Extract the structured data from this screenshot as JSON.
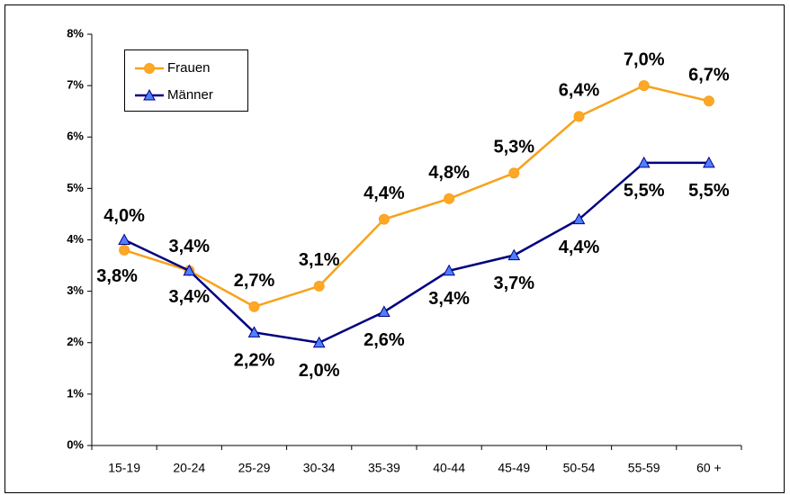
{
  "chart_data": {
    "type": "line",
    "categories": [
      "15-19",
      "20-24",
      "25-29",
      "30-34",
      "35-39",
      "40-44",
      "45-49",
      "50-54",
      "55-59",
      "60 +"
    ],
    "series": [
      {
        "name": "Frauen",
        "color": "#f7a21b",
        "marker": "circle",
        "values": [
          3.8,
          3.4,
          2.7,
          3.1,
          4.4,
          4.8,
          5.3,
          6.4,
          7.0,
          6.7
        ],
        "value_labels": [
          "3,8%",
          "3,4%",
          "2,7%",
          "3,1%",
          "4,4%",
          "4,8%",
          "5,3%",
          "6,4%",
          "7,0%",
          "6,7%"
        ]
      },
      {
        "name": "Männer",
        "color": "#000080",
        "marker": "triangle",
        "values": [
          4.0,
          3.4,
          2.2,
          2.0,
          2.6,
          3.4,
          3.7,
          4.4,
          5.5,
          5.5
        ],
        "value_labels": [
          "4,0%",
          "3,4%",
          "2,2%",
          "2,0%",
          "2,6%",
          "3,4%",
          "3,7%",
          "4,4%",
          "5,5%",
          "5,5%"
        ]
      }
    ],
    "ylim": [
      0,
      8
    ],
    "yticks": [
      {
        "value": 0,
        "label": "0%"
      },
      {
        "value": 1,
        "label": "1%"
      },
      {
        "value": 2,
        "label": "2%"
      },
      {
        "value": 3,
        "label": "3%"
      },
      {
        "value": 4,
        "label": "4%"
      },
      {
        "value": 5,
        "label": "5%"
      },
      {
        "value": 6,
        "label": "6%"
      },
      {
        "value": 7,
        "label": "7%"
      },
      {
        "value": 8,
        "label": "8%"
      }
    ],
    "legend": "top-left"
  }
}
